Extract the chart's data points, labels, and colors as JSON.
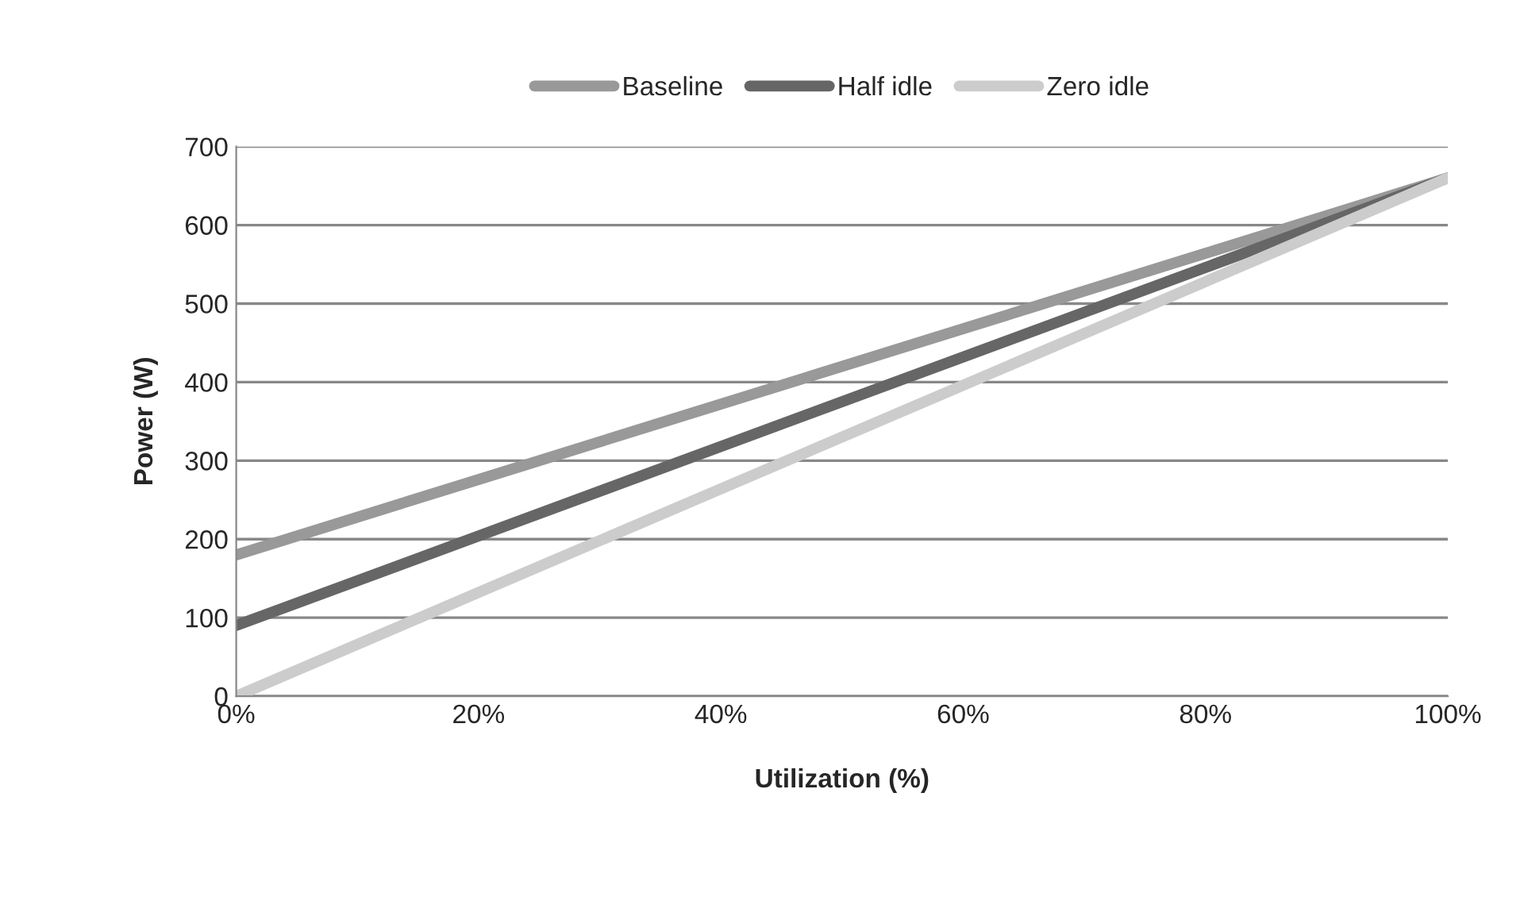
{
  "chart_data": {
    "type": "line",
    "xlabel": "Utilization (%)",
    "ylabel": "Power (W)",
    "x": [
      0,
      20,
      40,
      60,
      80,
      100
    ],
    "series": [
      {
        "name": "Baseline",
        "color": "#999999",
        "values": [
          180,
          276,
          372,
          468,
          564,
          660
        ]
      },
      {
        "name": "Half idle",
        "color": "#666666",
        "values": [
          90,
          204,
          318,
          432,
          546,
          660
        ]
      },
      {
        "name": "Zero idle",
        "color": "#cccccc",
        "values": [
          0,
          132,
          264,
          396,
          528,
          660
        ]
      }
    ],
    "xlim": [
      0,
      100
    ],
    "xticks": [
      {
        "value": 0,
        "label": "0%"
      },
      {
        "value": 20,
        "label": "20%"
      },
      {
        "value": 40,
        "label": "40%"
      },
      {
        "value": 60,
        "label": "60%"
      },
      {
        "value": 80,
        "label": "80%"
      },
      {
        "value": 100,
        "label": "100%"
      }
    ],
    "ylim": [
      0,
      700
    ],
    "yticks": [
      0,
      100,
      200,
      300,
      400,
      500,
      600,
      700
    ],
    "grid": "y",
    "legend": "top",
    "marker": "none",
    "line_style": "solid"
  }
}
